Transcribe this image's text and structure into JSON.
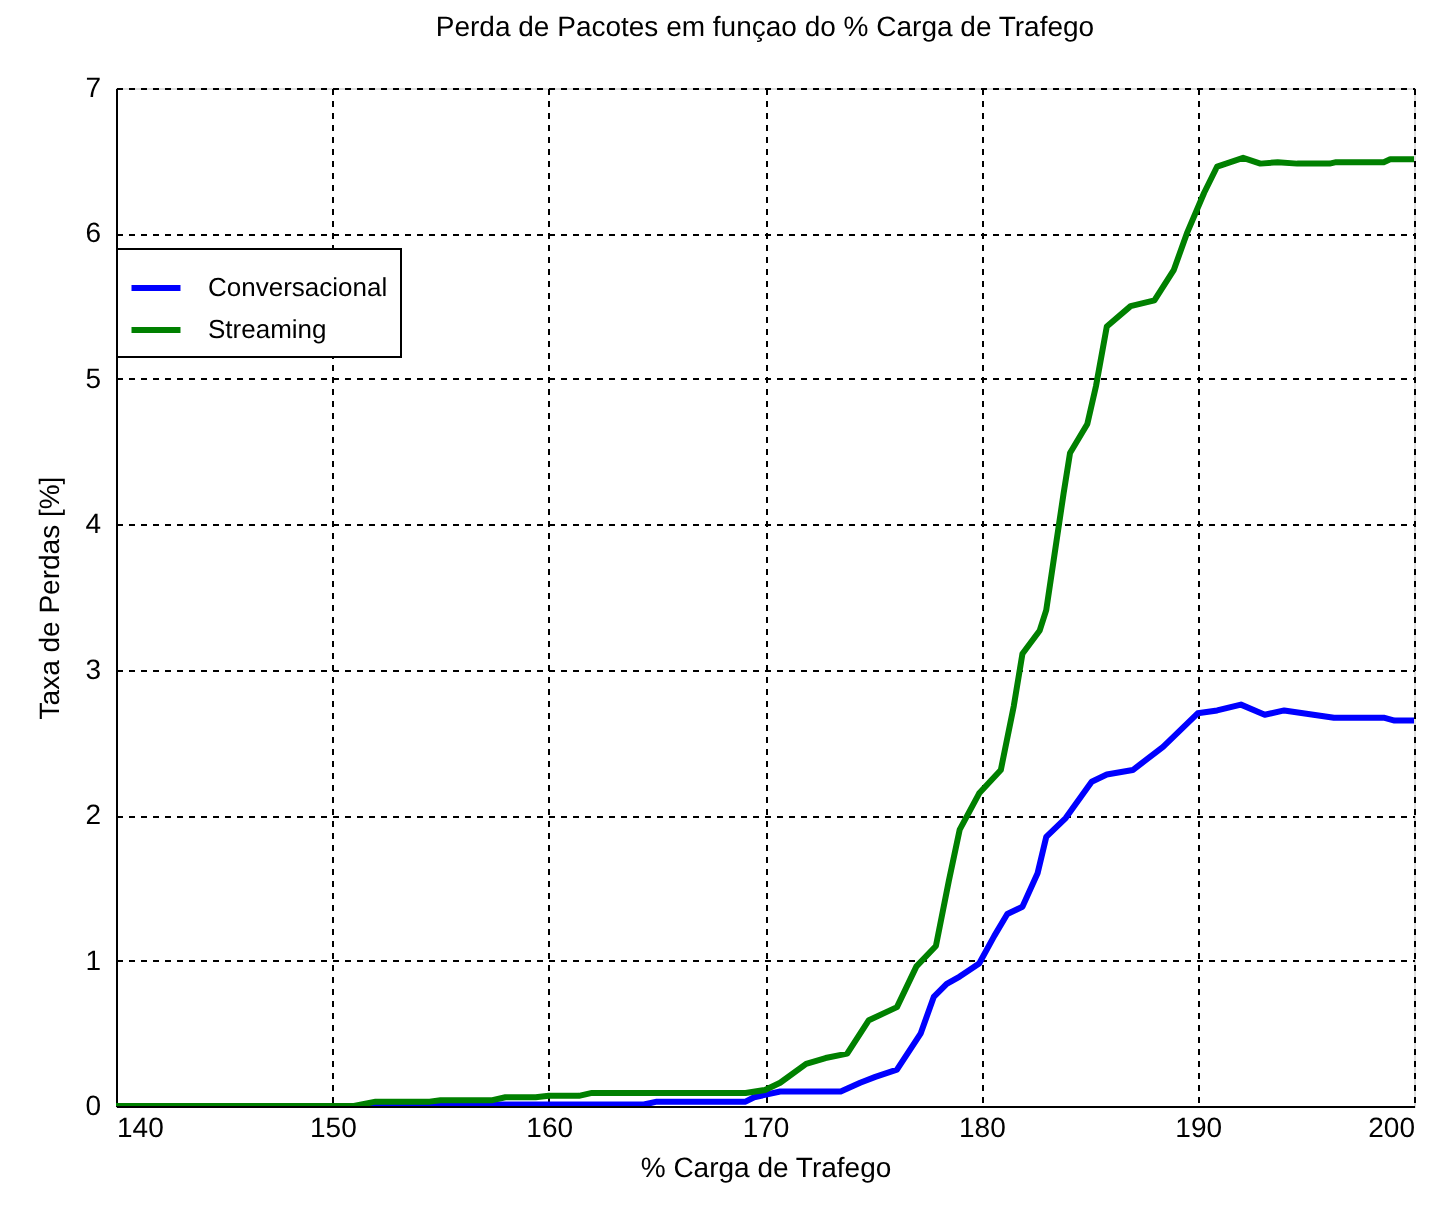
{
  "chart_data": {
    "type": "line",
    "title": "Perda de Pacotes em funçao do % Carga de Trafego",
    "xlabel": "% Carga de Trafego",
    "ylabel": "Taxa de Perdas [%]",
    "xlim": [
      140,
      200
    ],
    "ylim": [
      0,
      7
    ],
    "xticks": [
      140,
      150,
      160,
      170,
      180,
      190,
      200
    ],
    "yticks": [
      0,
      1,
      2,
      3,
      4,
      5,
      6,
      7
    ],
    "grid": true,
    "legend": "top left",
    "line_style": "solid",
    "series": [
      {
        "name": "Conversacional",
        "color": "#0000ff",
        "x": [
          140,
          154.5,
          155,
          164.4,
          165,
          169.1,
          169.5,
          170.7,
          173.5,
          174.4,
          175.1,
          176.1,
          177.2,
          177.8,
          178.4,
          179.0,
          179.9,
          180.6,
          181.2,
          181.9,
          182.6,
          183.0,
          183.9,
          185.1,
          185.8,
          187.0,
          188.4,
          190.0,
          190.9,
          192.0,
          193.1,
          194.0,
          196.3,
          198.6,
          199.1,
          200
        ],
        "values": [
          0,
          0,
          0.01,
          0.01,
          0.03,
          0.03,
          0.06,
          0.1,
          0.1,
          0.16,
          0.2,
          0.25,
          0.5,
          0.75,
          0.84,
          0.89,
          0.98,
          1.17,
          1.32,
          1.37,
          1.6,
          1.85,
          1.98,
          2.23,
          2.28,
          2.31,
          2.47,
          2.7,
          2.72,
          2.76,
          2.69,
          2.72,
          2.67,
          2.67,
          2.65,
          2.65
        ]
      },
      {
        "name": "Streaming",
        "color": "#008000",
        "x": [
          140,
          151,
          152,
          154.5,
          155,
          157.4,
          158,
          159.4,
          160,
          161.4,
          162,
          169.1,
          170,
          170.7,
          171.9,
          172.8,
          173.8,
          174.8,
          176.1,
          177.0,
          177.9,
          178.5,
          179.0,
          179.9,
          180.9,
          181.5,
          181.9,
          182.7,
          183.0,
          183.3,
          183.8,
          184.1,
          184.9,
          185.3,
          185.8,
          186.9,
          188.0,
          188.9,
          189.5,
          190.3,
          190.9,
          192.1,
          192.9,
          193.7,
          194.6,
          196.1,
          196.4,
          198.6,
          198.9,
          200
        ],
        "values": [
          0,
          0,
          0.03,
          0.03,
          0.04,
          0.04,
          0.06,
          0.06,
          0.07,
          0.07,
          0.09,
          0.09,
          0.11,
          0.16,
          0.29,
          0.33,
          0.36,
          0.59,
          0.68,
          0.96,
          1.1,
          1.55,
          1.9,
          2.15,
          2.31,
          2.75,
          3.11,
          3.27,
          3.41,
          3.71,
          4.21,
          4.49,
          4.69,
          4.95,
          5.36,
          5.5,
          5.54,
          5.75,
          6.0,
          6.28,
          6.46,
          6.52,
          6.48,
          6.49,
          6.48,
          6.48,
          6.49,
          6.49,
          6.51,
          6.51
        ]
      }
    ]
  }
}
